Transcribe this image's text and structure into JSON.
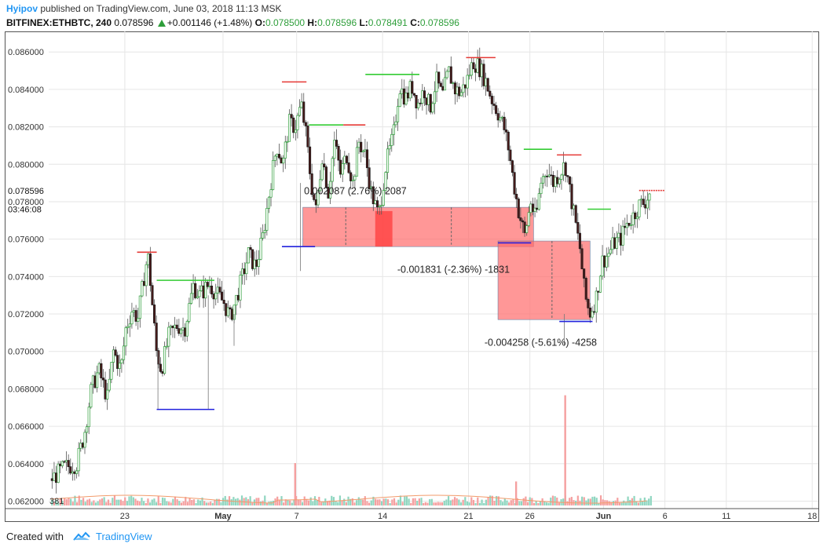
{
  "header": {
    "user": "Hyipov",
    "published": "published on TradingView.com, June 03, 2018 11:13 MSK",
    "symbol": "BITFINEX:ETHBTC, 240",
    "last": "0.078596",
    "change": "+0.001146 (+1.48%)",
    "o_label": "O:",
    "o_value": "0.078500",
    "h_label": "H:",
    "h_value": "0.078596",
    "l_label": "L:",
    "l_value": "0.078491",
    "c_label": "C:",
    "c_value": "0.078596"
  },
  "footer": {
    "created": "Created with",
    "brand": "TradingView"
  },
  "colors": {
    "up": "#2e9e3a",
    "down": "#222222",
    "resistance": "#e53935",
    "support_high": "#33cc33",
    "support_low": "#2222dd",
    "range_fill": "#ff6b6b",
    "grid": "#e6e6e6",
    "volume_up": "#8fd6c0",
    "volume_down": "#f5a0a0"
  },
  "chart_data": {
    "type": "candlestick",
    "ylim": [
      0.0616,
      0.0871
    ],
    "yticks": [
      "0.086000",
      "0.084000",
      "0.082000",
      "0.080000",
      "0.078000",
      "0.076000",
      "0.074000",
      "0.072000",
      "0.070000",
      "0.068000",
      "0.066000",
      "0.064000",
      "0.062000"
    ],
    "yvalues": [
      0.086,
      0.084,
      0.082,
      0.08,
      0.078,
      0.076,
      0.074,
      0.072,
      0.07,
      0.068,
      0.066,
      0.064,
      0.062
    ],
    "price_label": "0.078596",
    "price_label_value": 0.078596,
    "countdown_label": "03:46:08",
    "countdown_value": 0.0776,
    "x_start_day": 0,
    "x_end_day": 54,
    "xticks": [
      {
        "label": "23",
        "day": 6
      },
      {
        "label": "May",
        "day": 14
      },
      {
        "label": "7",
        "day": 20
      },
      {
        "label": "14",
        "day": 27
      },
      {
        "label": "21",
        "day": 34
      },
      {
        "label": "26",
        "day": 39
      },
      {
        "label": "Jun",
        "day": 45
      },
      {
        "label": "6",
        "day": 50
      },
      {
        "label": "11",
        "day": 55
      },
      {
        "label": "18",
        "day": 62
      }
    ],
    "xrange_days": [
      -0.2,
      62.5
    ],
    "trajectory": [
      [
        0.0,
        0.0632
      ],
      [
        1.0,
        0.0638
      ],
      [
        2.0,
        0.064
      ],
      [
        2.6,
        0.0655
      ],
      [
        3.2,
        0.068
      ],
      [
        3.8,
        0.069
      ],
      [
        4.5,
        0.0675
      ],
      [
        5.0,
        0.07
      ],
      [
        5.6,
        0.069
      ],
      [
        6.0,
        0.0712
      ],
      [
        6.5,
        0.0722
      ],
      [
        7.0,
        0.0718
      ],
      [
        7.5,
        0.074
      ],
      [
        7.8,
        0.0752
      ],
      [
        8.1,
        0.073
      ],
      [
        8.5,
        0.07
      ],
      [
        8.9,
        0.069
      ],
      [
        9.5,
        0.0708
      ],
      [
        10.2,
        0.0714
      ],
      [
        10.8,
        0.0712
      ],
      [
        11.5,
        0.0735
      ],
      [
        12.0,
        0.073
      ],
      [
        12.8,
        0.0736
      ],
      [
        13.5,
        0.073
      ],
      [
        14.0,
        0.0726
      ],
      [
        14.5,
        0.0718
      ],
      [
        15.0,
        0.0728
      ],
      [
        15.5,
        0.074
      ],
      [
        16.0,
        0.0752
      ],
      [
        16.6,
        0.0745
      ],
      [
        17.2,
        0.0762
      ],
      [
        17.8,
        0.079
      ],
      [
        18.3,
        0.081
      ],
      [
        18.8,
        0.08
      ],
      [
        19.3,
        0.0822
      ],
      [
        19.8,
        0.082
      ],
      [
        20.3,
        0.0832
      ],
      [
        20.7,
        0.0815
      ],
      [
        21.1,
        0.079
      ],
      [
        21.5,
        0.0775
      ],
      [
        22.0,
        0.0805
      ],
      [
        22.5,
        0.0785
      ],
      [
        23.0,
        0.0812
      ],
      [
        23.5,
        0.0795
      ],
      [
        24.0,
        0.0805
      ],
      [
        24.5,
        0.079
      ],
      [
        25.0,
        0.0812
      ],
      [
        25.5,
        0.0805
      ],
      [
        26.0,
        0.0785
      ],
      [
        26.6,
        0.0772
      ],
      [
        27.2,
        0.08
      ],
      [
        27.8,
        0.0815
      ],
      [
        28.3,
        0.0842
      ],
      [
        28.8,
        0.0835
      ],
      [
        29.3,
        0.0842
      ],
      [
        29.8,
        0.0832
      ],
      [
        30.3,
        0.084
      ],
      [
        30.8,
        0.083
      ],
      [
        31.3,
        0.0845
      ],
      [
        31.8,
        0.0836
      ],
      [
        32.3,
        0.085
      ],
      [
        32.8,
        0.084
      ],
      [
        33.3,
        0.0838
      ],
      [
        33.8,
        0.0845
      ],
      [
        34.3,
        0.0855
      ],
      [
        34.8,
        0.0852
      ],
      [
        35.3,
        0.0845
      ],
      [
        35.8,
        0.0835
      ],
      [
        36.3,
        0.0828
      ],
      [
        36.8,
        0.082
      ],
      [
        37.2,
        0.0808
      ],
      [
        37.6,
        0.079
      ],
      [
        38.0,
        0.0775
      ],
      [
        38.5,
        0.0762
      ],
      [
        39.0,
        0.078
      ],
      [
        39.4,
        0.077
      ],
      [
        39.8,
        0.079
      ],
      [
        40.3,
        0.0798
      ],
      [
        40.8,
        0.079
      ],
      [
        41.3,
        0.0795
      ],
      [
        41.8,
        0.08
      ],
      [
        42.2,
        0.0785
      ],
      [
        42.6,
        0.077
      ],
      [
        43.0,
        0.0755
      ],
      [
        43.4,
        0.073
      ],
      [
        43.8,
        0.072
      ],
      [
        44.3,
        0.0728
      ],
      [
        44.8,
        0.0748
      ],
      [
        45.3,
        0.0752
      ],
      [
        45.8,
        0.0758
      ],
      [
        46.3,
        0.076
      ],
      [
        46.8,
        0.0768
      ],
      [
        47.3,
        0.0772
      ],
      [
        47.8,
        0.0778
      ],
      [
        48.3,
        0.078
      ],
      [
        48.8,
        0.0786
      ]
    ],
    "levels": [
      {
        "kind": "resistance",
        "value": 0.0753,
        "day_from": 7.0,
        "day_to": 8.6
      },
      {
        "kind": "support_high",
        "value": 0.0738,
        "day_from": 8.6,
        "day_to": 13.3
      },
      {
        "kind": "support_low",
        "value": 0.0669,
        "day_from": 8.6,
        "day_to": 13.3
      },
      {
        "kind": "resistance",
        "value": 0.0844,
        "day_from": 18.8,
        "day_to": 20.8
      },
      {
        "kind": "support_high",
        "value": 0.0821,
        "day_from": 21.0,
        "day_to": 23.8
      },
      {
        "kind": "resistance",
        "value": 0.0821,
        "day_from": 23.8,
        "day_to": 25.6
      },
      {
        "kind": "support_low",
        "value": 0.0756,
        "day_from": 18.8,
        "day_to": 21.5
      },
      {
        "kind": "support_high",
        "value": 0.0848,
        "day_from": 25.6,
        "day_to": 30.0
      },
      {
        "kind": "resistance",
        "value": 0.0857,
        "day_from": 33.8,
        "day_to": 36.2
      },
      {
        "kind": "support_high",
        "value": 0.0808,
        "day_from": 38.5,
        "day_to": 40.8
      },
      {
        "kind": "resistance",
        "value": 0.0805,
        "day_from": 41.2,
        "day_to": 43.2
      },
      {
        "kind": "support_low",
        "value": 0.0758,
        "day_from": 36.4,
        "day_to": 39.1
      },
      {
        "kind": "support_low",
        "value": 0.0716,
        "day_from": 41.4,
        "day_to": 44.1
      },
      {
        "kind": "support_high",
        "value": 0.0776,
        "day_from": 43.7,
        "day_to": 45.6
      },
      {
        "kind": "resistance",
        "value": 0.0786,
        "day_from": 47.9,
        "day_to": 50.0
      }
    ],
    "ranges": [
      {
        "day_from": 20.5,
        "day_to": 39.3,
        "value_from": 0.0756,
        "value_to": 0.0777,
        "label": "0.002087 (2.76%) 2087",
        "label_day": 20.6,
        "label_value": 0.0784
      },
      {
        "day_from": 36.4,
        "day_to": 43.9,
        "value_from": 0.0717,
        "value_to": 0.0759,
        "label": "-0.001831 (-2.36%) -1831",
        "label_day": 28.2,
        "label_value": 0.0742
      },
      {
        "day_from": 36.4,
        "day_to": 43.9,
        "value_from": 0.0717,
        "value_to": 0.0717,
        "label": "-0.004258 (-5.61%) -4258",
        "label_day": 35.3,
        "label_value": 0.0703
      }
    ],
    "dark_zone": {
      "day_from": 26.4,
      "day_to": 27.8,
      "value_from": 0.0756,
      "value_to": 0.0775
    },
    "volume_label": "381",
    "volume_spikes": [
      {
        "day": 19.8,
        "height": 0.3
      },
      {
        "day": 37.8,
        "height": 0.17
      },
      {
        "day": 41.8,
        "height": 0.78
      }
    ]
  }
}
